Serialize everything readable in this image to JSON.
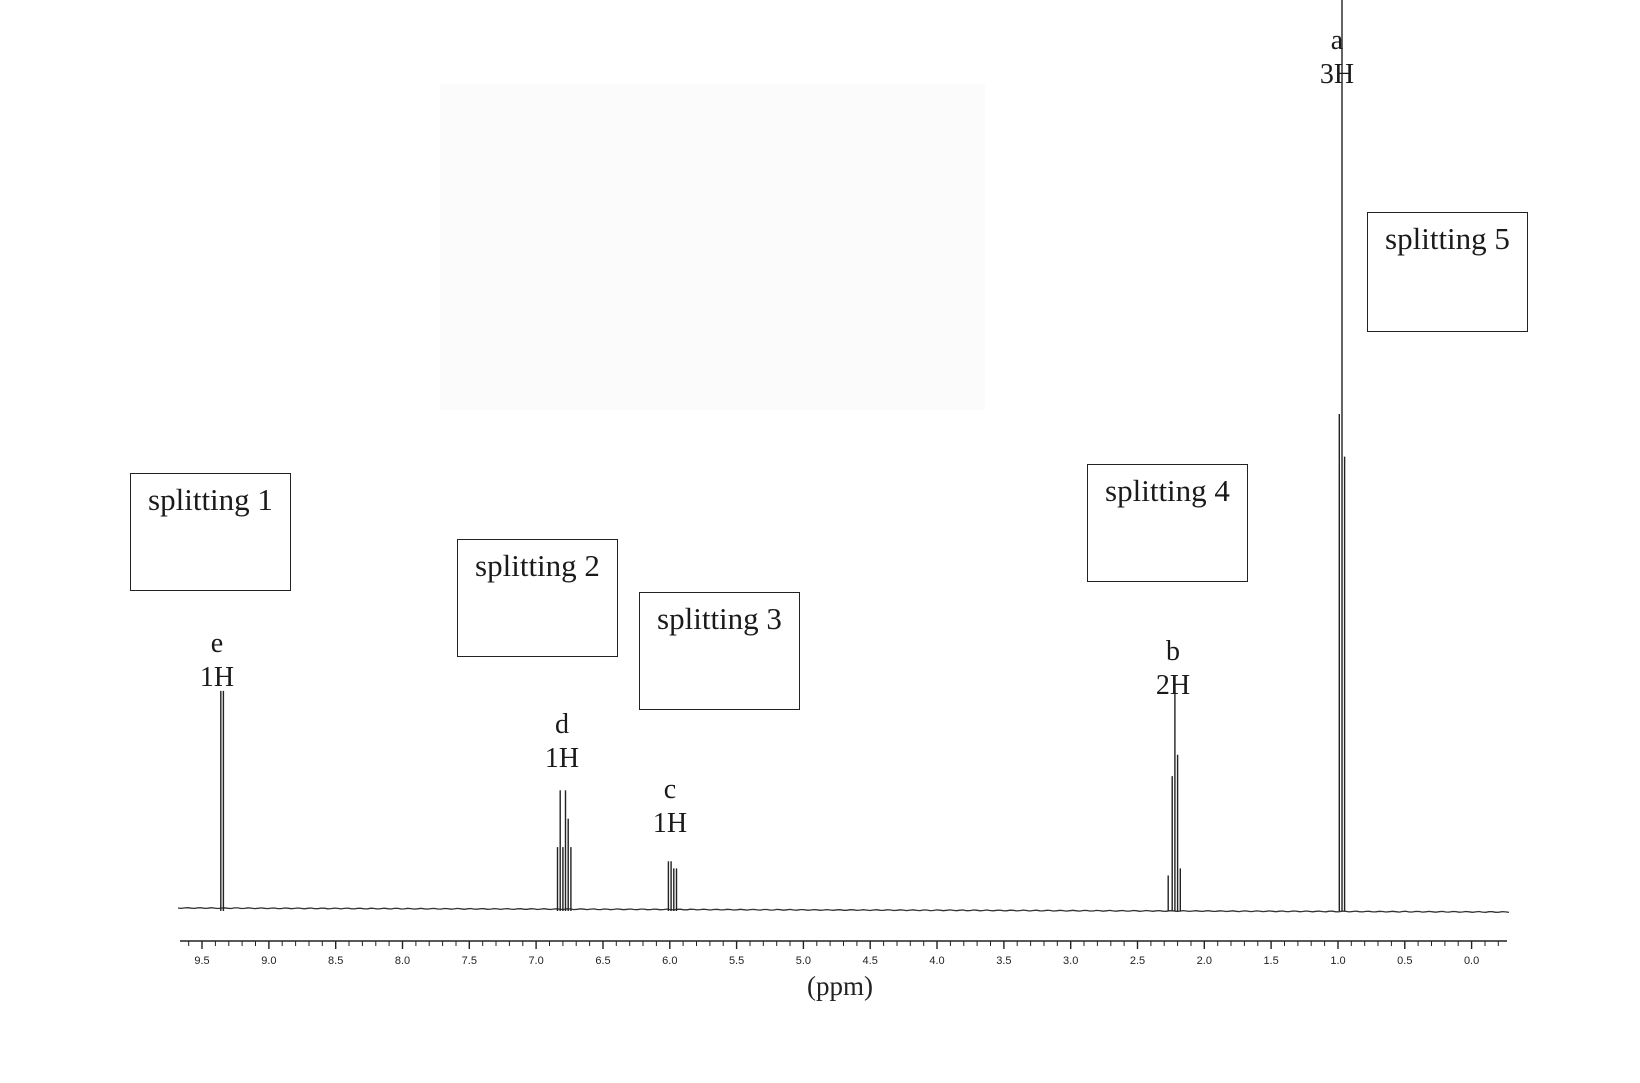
{
  "chart_data": {
    "type": "line",
    "xlabel": "(ppm)",
    "xlim": [
      9.65,
      -0.25
    ],
    "x_reversed": true,
    "ticks": [
      "9.5",
      "9.0",
      "8.5",
      "8.0",
      "7.5",
      "7.0",
      "6.5",
      "6.0",
      "5.5",
      "5.0",
      "4.5",
      "4.0",
      "3.5",
      "3.0",
      "2.5",
      "2.0",
      "1.5",
      "1.0",
      "0.5",
      "0.0"
    ],
    "peaks": [
      {
        "label": "e",
        "integration": "1H",
        "splitting_box": "splitting 1",
        "lines": [
          9.36,
          9.34
        ],
        "height": 0.31
      },
      {
        "label": "d",
        "integration": "1H",
        "splitting_box": "splitting 2",
        "lines": [
          6.84,
          6.82,
          6.8,
          6.78,
          6.76,
          6.74
        ],
        "heights": [
          0.09,
          0.17,
          0.09,
          0.17,
          0.13,
          0.09
        ]
      },
      {
        "label": "c",
        "integration": "1H",
        "splitting_box": "splitting 3",
        "lines": [
          6.01,
          5.99,
          5.97,
          5.95
        ],
        "heights": [
          0.07,
          0.07,
          0.06,
          0.06
        ]
      },
      {
        "label": "b",
        "integration": "2H",
        "splitting_box": "splitting 4",
        "lines": [
          2.27,
          2.24,
          2.22,
          2.2,
          2.18
        ],
        "heights": [
          0.05,
          0.19,
          0.31,
          0.22,
          0.06
        ]
      },
      {
        "label": "a",
        "integration": "3H",
        "splitting_box": "splitting 5",
        "lines": [
          0.99,
          0.97,
          0.95
        ],
        "heights": [
          0.7,
          1.3,
          0.64
        ]
      }
    ],
    "labels": {
      "e": {
        "letter": "e",
        "count": "1H"
      },
      "d": {
        "letter": "d",
        "count": "1H"
      },
      "c": {
        "letter": "c",
        "count": "1H"
      },
      "b": {
        "letter": "b",
        "count": "2H"
      },
      "a": {
        "letter": "a",
        "count": "3H"
      }
    },
    "splitting_boxes": [
      "splitting 1",
      "splitting 2",
      "splitting 3",
      "splitting 4",
      "splitting 5"
    ],
    "grid": false
  }
}
